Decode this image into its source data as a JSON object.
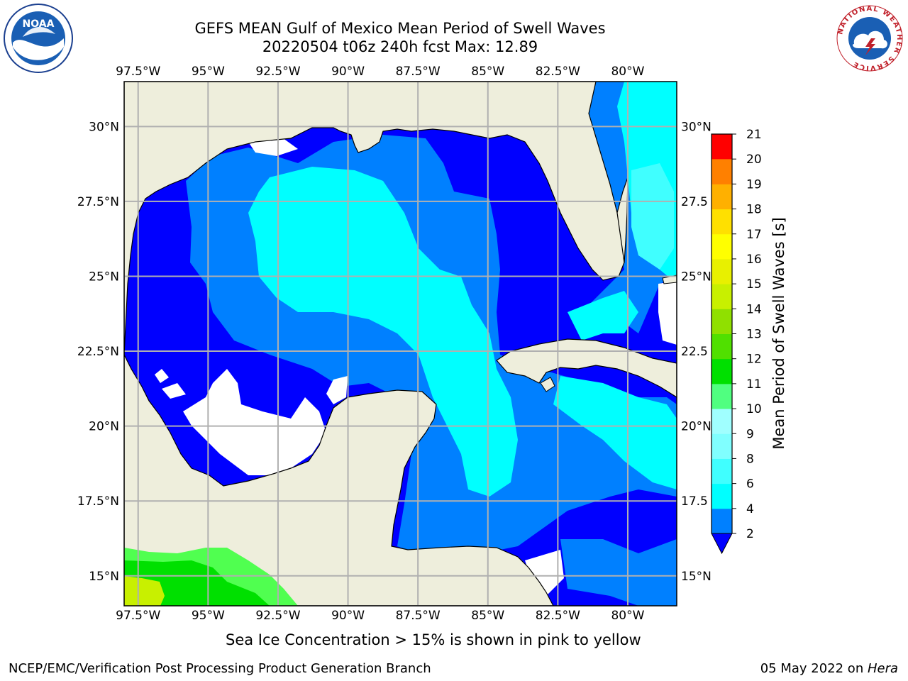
{
  "title": {
    "line1": "GEFS MEAN Gulf of Mexico Mean Period of Swell Waves",
    "line2": "20220504 t06z 240h fcst   Max: 12.89"
  },
  "map": {
    "lon_labels": [
      "97.5°W",
      "95°W",
      "92.5°W",
      "90°W",
      "87.5°W",
      "85°W",
      "82.5°W",
      "80°W"
    ],
    "lat_labels": [
      "30°N",
      "27.5°N",
      "25°N",
      "22.5°N",
      "20°N",
      "17.5°N",
      "15°N"
    ],
    "lat_labels_right": [
      "30°N",
      "27.5",
      "25°N",
      "22.5",
      "20°N",
      "17.5",
      "15°N"
    ],
    "lon_range": [
      -98,
      -78.25
    ],
    "lat_range": [
      14,
      31.5
    ],
    "land_color": "#eeeedc",
    "grid_color": "#b0b0b0"
  },
  "colorbar": {
    "label": "Mean Period of Swell Waves [s]",
    "ticks": [
      "2",
      "4",
      "6",
      "8",
      "9",
      "10",
      "11",
      "12",
      "13",
      "14",
      "15",
      "16",
      "17",
      "18",
      "19",
      "20",
      "21"
    ],
    "colors": [
      "#0080ff",
      "#00c8ff",
      "#00ffff",
      "#40ffff",
      "#80ffff",
      "#a0ffe0",
      "#50ff80",
      "#00e000",
      "#50e000",
      "#90e000",
      "#c8f000",
      "#e8f000",
      "#ffff00",
      "#ffe000",
      "#ffb000",
      "#ff8000",
      "#ff5000",
      "#ff2000",
      "#ff0000"
    ],
    "extend_color": "#0000ff"
  },
  "footnote": "Sea Ice Concentration > 15% is shown in pink to yellow",
  "credit_left": "NCEP/EMC/Verification Post Processing Product Generation Branch",
  "credit_right_date": "05 May 2022 on ",
  "credit_right_host": "Hera",
  "logos": {
    "noaa_text": "NOAA",
    "nws_ring_text": "NATIONAL WEATHER SERVICE"
  }
}
